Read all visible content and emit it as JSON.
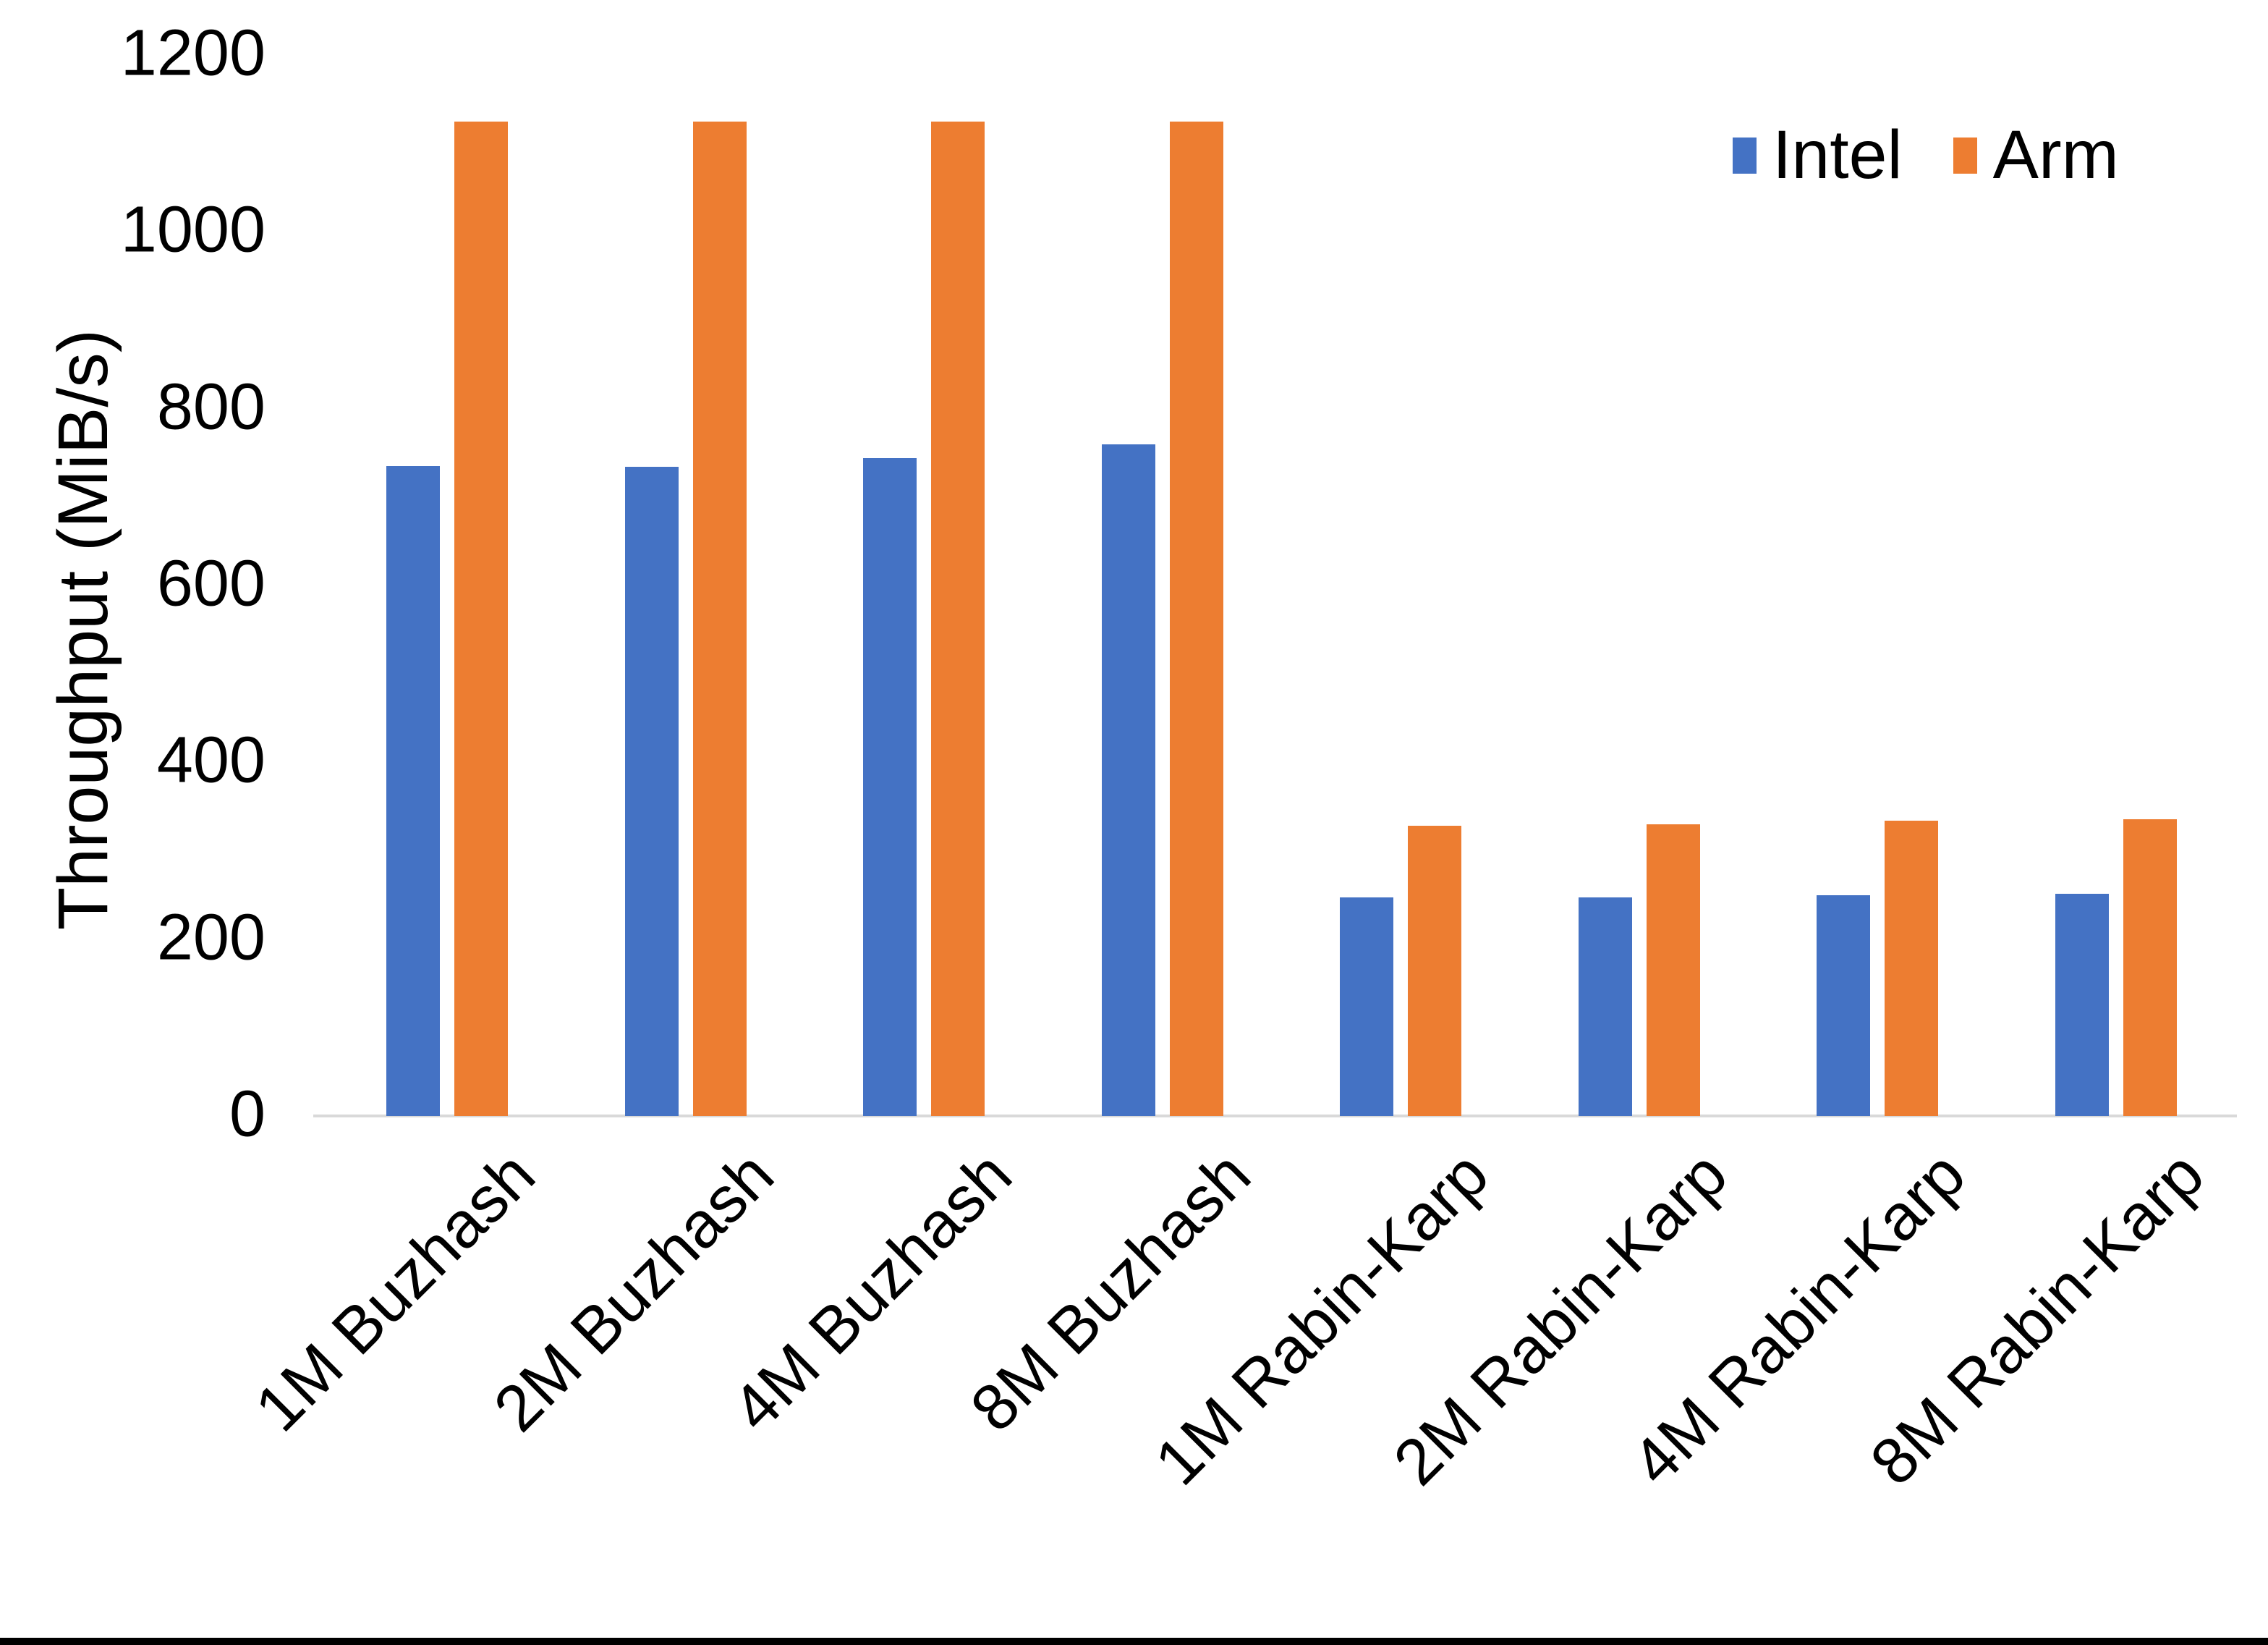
{
  "page": {
    "background": "#FFFFFF",
    "bottom_border_color": "#000000"
  },
  "chart_data": {
    "type": "bar",
    "title": "",
    "xlabel": "",
    "ylabel": "Throughput (MiB/s)",
    "ylim": [
      0,
      1200
    ],
    "yticks": [
      0,
      200,
      400,
      600,
      800,
      1000,
      1200
    ],
    "grid": false,
    "axis_line_color": "#D9D9D9",
    "text_color": "#000000",
    "legend_position": "top-right",
    "categories": [
      "1M Buzhash",
      "2M Buzhash",
      "4M Buzhash",
      "8M Buzhash",
      "1M Rabin-Karp",
      "2M Rabin-Karp",
      "4M Rabin-Karp",
      "8M Rabin-Karp"
    ],
    "series": [
      {
        "name": "Intel",
        "color": "#4472C4",
        "values": [
          735,
          734,
          744,
          760,
          247,
          247,
          250,
          251
        ]
      },
      {
        "name": "Arm",
        "color": "#ED7D31",
        "values": [
          1125,
          1125,
          1125,
          1125,
          328,
          330,
          334,
          336
        ]
      }
    ]
  }
}
